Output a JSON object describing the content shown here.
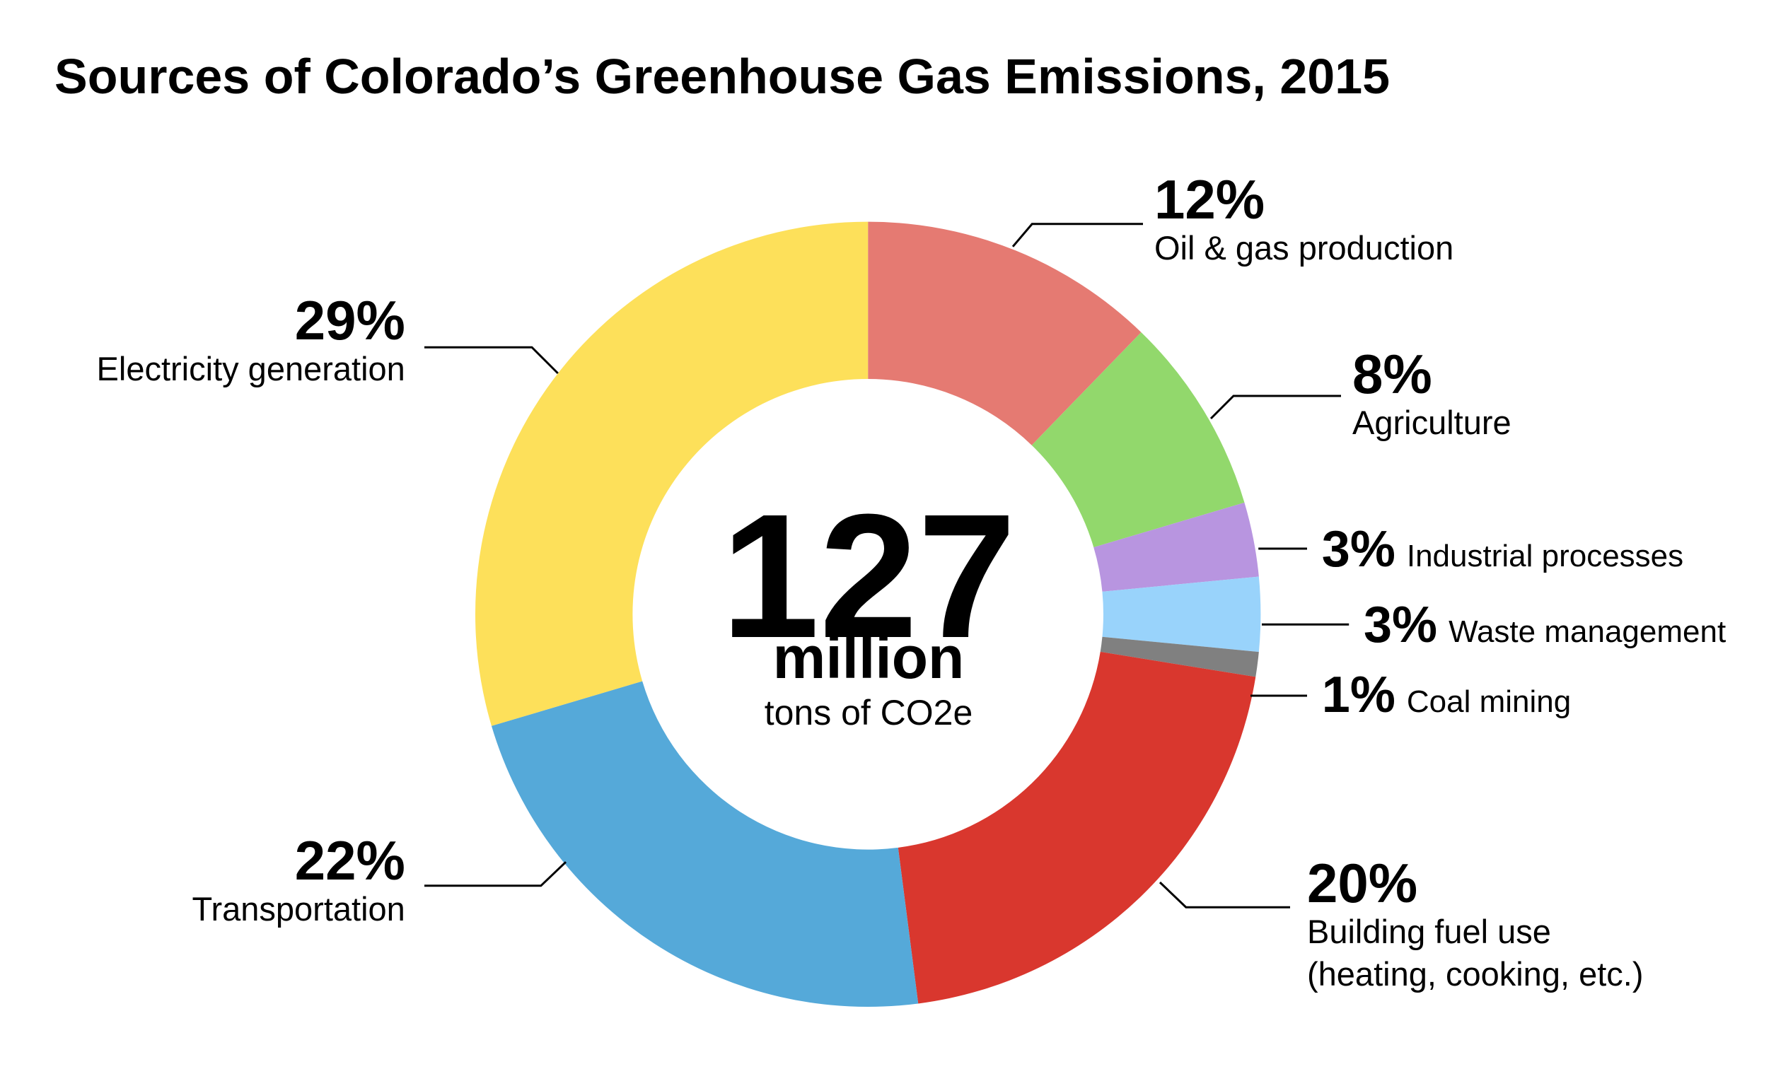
{
  "chart_data": {
    "type": "donut",
    "title": "Sources of Colorado’s Greenhouse Gas Emissions, 2015",
    "categories": [
      "Oil & gas production",
      "Agriculture",
      "Industrial processes",
      "Waste management",
      "Coal mining",
      "Building fuel use\n(heating, cooking, etc.)",
      "Transportation",
      "Electricity generation"
    ],
    "values": [
      12,
      8,
      3,
      3,
      1,
      20,
      22,
      29
    ],
    "value_labels": [
      "12%",
      "8%",
      "3%",
      "3%",
      "1%",
      "20%",
      "22%",
      "29%"
    ],
    "colors": [
      "#e57a72",
      "#92d86c",
      "#b895e0",
      "#99d3fb",
      "#808080",
      "#d9372e",
      "#55a9d9",
      "#fde05a"
    ],
    "center": {
      "value": 127,
      "unit": "million",
      "note": "tons of CO2e"
    }
  }
}
